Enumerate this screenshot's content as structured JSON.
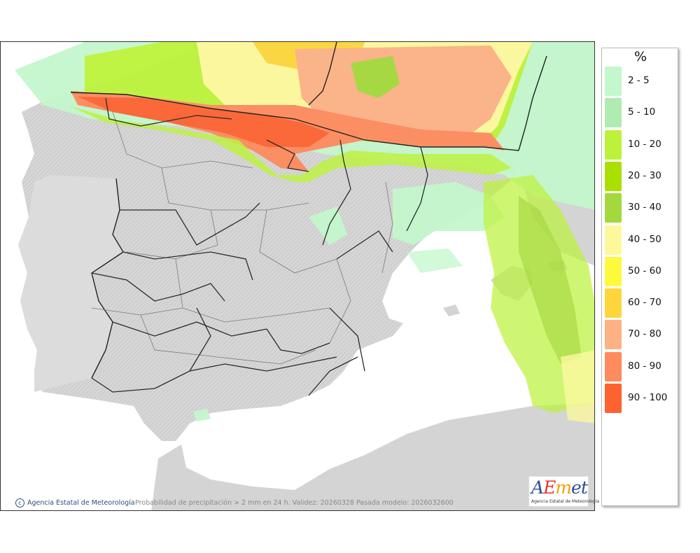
{
  "legend": {
    "title": "%",
    "items": [
      {
        "label": "2 - 5",
        "color": "#c3f7cc"
      },
      {
        "label": "5 - 10",
        "color": "#b0ebb2"
      },
      {
        "label": "10 - 20",
        "color": "#bcf33a"
      },
      {
        "label": "20 - 30",
        "color": "#a9e000"
      },
      {
        "label": "30 - 40",
        "color": "#a4d93d"
      },
      {
        "label": "40 - 50",
        "color": "#fdf99b"
      },
      {
        "label": "50 - 60",
        "color": "#fdfa3d"
      },
      {
        "label": "60 - 70",
        "color": "#fdd63c"
      },
      {
        "label": "70 - 80",
        "color": "#fdb185"
      },
      {
        "label": "80 - 90",
        "color": "#fd8b5d"
      },
      {
        "label": "90 - 100",
        "color": "#fd6231"
      }
    ]
  },
  "footer": {
    "copyright": "Agencia Estatal de Meteorología",
    "caption": "Probabilidad de precipitación > 2 mm en 24 h. Validez: 20260328 Pasada modelo: 2026032600"
  },
  "logo": {
    "word": "AEmet",
    "subtitle": "Agencia Estatal de Meteorología",
    "colors": {
      "a": "#2a4f9d",
      "e": "#e8332a",
      "m": "#f5a100",
      "et": "#2a4f9d"
    }
  },
  "colors": {
    "land": "#d4d4d4",
    "sea": "#ffffff",
    "border": "#333333",
    "region_border": "#7a7a7a"
  }
}
